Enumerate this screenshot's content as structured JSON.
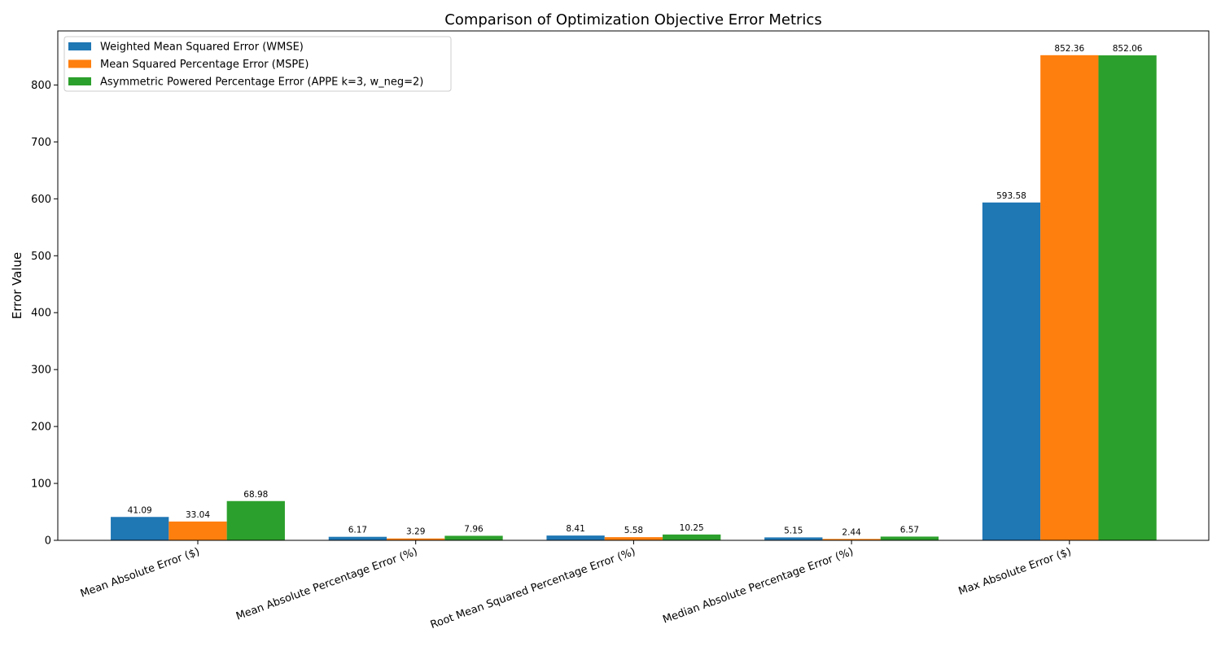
{
  "chart_data": {
    "type": "bar",
    "title": "Comparison of Optimization Objective Error Metrics",
    "xlabel": "",
    "ylabel": "Error Value",
    "ylim": [
      0,
      895
    ],
    "yticks": [
      0,
      100,
      200,
      300,
      400,
      500,
      600,
      700,
      800
    ],
    "categories": [
      "Mean Absolute Error ($)",
      "Mean Absolute Percentage Error (%)",
      "Root Mean Squared Percentage Error (%)",
      "Median Absolute Percentage Error (%)",
      "Max Absolute Error ($)"
    ],
    "series": [
      {
        "name": "Weighted Mean Squared Error (WMSE)",
        "color": "#1f77b4",
        "values": [
          41.09,
          6.17,
          8.41,
          5.15,
          593.58
        ]
      },
      {
        "name": "Mean Squared Percentage Error (MSPE)",
        "color": "#ff7f0e",
        "values": [
          33.04,
          3.29,
          5.58,
          2.44,
          852.36
        ]
      },
      {
        "name": "Asymmetric Powered Percentage Error (APPE k=3, w_neg=2)",
        "color": "#2ca02c",
        "values": [
          68.98,
          7.96,
          10.25,
          6.57,
          852.06
        ]
      }
    ],
    "legend_position": "top-left",
    "grid": false
  }
}
